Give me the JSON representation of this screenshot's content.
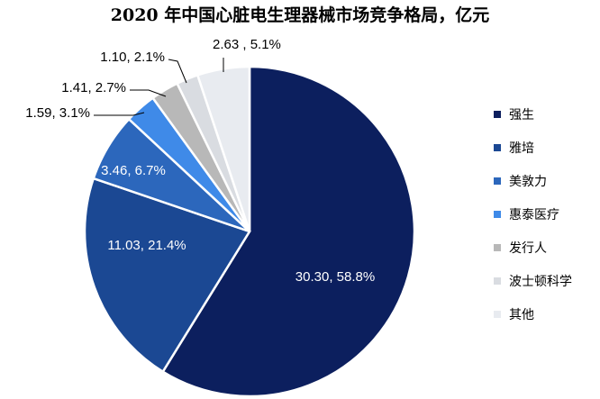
{
  "chart_data": {
    "type": "pie",
    "title": "2020 年中国心脏电生理器械市场竞争格局，亿元",
    "slices": [
      {
        "name": "强生",
        "value": 30.3,
        "percent": "58.8%",
        "label": "30.30, 58.8%",
        "color": "#0c1f5e"
      },
      {
        "name": "雅培",
        "value": 11.03,
        "percent": "21.4%",
        "label": "11.03, 21.4%",
        "color": "#1b4893"
      },
      {
        "name": "美敦力",
        "value": 3.46,
        "percent": "6.7%",
        "label": "3.46, 6.7%",
        "color": "#2c67bc"
      },
      {
        "name": "惠泰医疗",
        "value": 1.59,
        "percent": "3.1%",
        "label": "1.59, 3.1%",
        "color": "#3f8ae8"
      },
      {
        "name": "发行人",
        "value": 1.41,
        "percent": "2.7%",
        "label": "1.41, 2.7%",
        "color": "#b8b8b8"
      },
      {
        "name": "波士顿科学",
        "value": 1.1,
        "percent": "2.1%",
        "label": "1.10, 2.1%",
        "color": "#d9dce1"
      },
      {
        "name": "其他",
        "value": 2.63,
        "percent": "5.1%",
        "label": "2.63 , 5.1%",
        "color": "#e8ebf0"
      }
    ],
    "legend_position": "right"
  }
}
